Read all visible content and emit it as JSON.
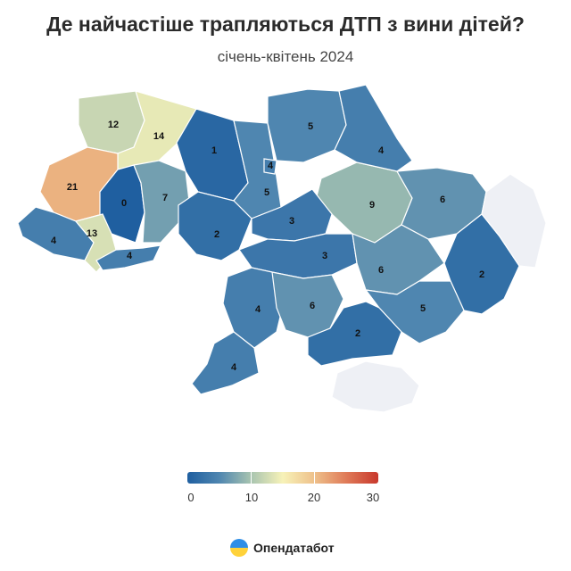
{
  "title": "Де найчастіше трапляються ДТП з вини дітей?",
  "subtitle": "січень-квітень 2024",
  "regions": [
    {
      "value": 12
    },
    {
      "value": 14
    },
    {
      "value": 1
    },
    {
      "value": 5
    },
    {
      "value": 4
    },
    {
      "value": 21
    },
    {
      "value": 0
    },
    {
      "value": 7
    },
    {
      "value": 4
    },
    {
      "value": 5
    },
    {
      "value": 9
    },
    {
      "value": 6
    },
    {
      "value": 4
    },
    {
      "value": 13
    },
    {
      "value": 2
    },
    {
      "value": 3
    },
    {
      "value": 4
    },
    {
      "value": 3
    },
    {
      "value": 6
    },
    {
      "value": 2
    },
    {
      "value": 4
    },
    {
      "value": 6
    },
    {
      "value": 5
    },
    {
      "value": 2
    },
    {
      "value": 4
    },
    {
      "value": null
    },
    {
      "value": null
    }
  ],
  "legend": {
    "min": 0,
    "max": 30,
    "ticks": [
      "0",
      "10",
      "20",
      "30"
    ],
    "colors": [
      "#1f5fa0",
      "#4f86b0",
      "#a8c4b0",
      "#f7f2b8",
      "#eec08a",
      "#df7a58",
      "#c8382c"
    ]
  },
  "no_data_color": "#eef0f5",
  "brand": {
    "name": "Опендатабот",
    "icon": "opendatabot-logo"
  }
}
